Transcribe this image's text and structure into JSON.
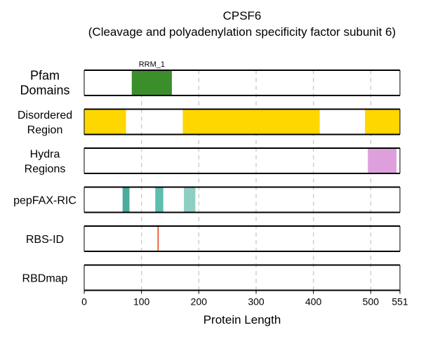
{
  "chart_data": {
    "type": "track",
    "title_line1": "CPSF6",
    "title_line2": "(Cleavage and polyadenylation specificity factor subunit 6)",
    "xlabel": "Protein Length",
    "xlim": [
      0,
      551
    ],
    "xticks": [
      0,
      100,
      200,
      300,
      400,
      500,
      551
    ],
    "gridlines": [
      100,
      200,
      300,
      400,
      500
    ],
    "tracks": [
      {
        "label_lines": [
          "Pfam",
          "Domains"
        ],
        "big": true,
        "segments": [
          {
            "start": 83,
            "end": 153,
            "color": "#3a8f2a",
            "label": "RRM_1"
          }
        ]
      },
      {
        "label_lines": [
          "Disordered",
          "Region"
        ],
        "segments": [
          {
            "start": 0,
            "end": 73,
            "color": "#ffd700"
          },
          {
            "start": 172,
            "end": 411,
            "color": "#ffd700"
          },
          {
            "start": 490,
            "end": 551,
            "color": "#ffd700"
          }
        ]
      },
      {
        "label_lines": [
          "Hydra",
          "Regions"
        ],
        "segments": [
          {
            "start": 495,
            "end": 545,
            "color": "#dda0dd"
          }
        ]
      },
      {
        "label_lines": [
          "pepFAX-RIC"
        ],
        "segments": [
          {
            "start": 67,
            "end": 79,
            "color": "#4aab9e"
          },
          {
            "start": 124,
            "end": 138,
            "color": "#5cbdaf"
          },
          {
            "start": 174,
            "end": 194,
            "color": "#8dd0c3"
          }
        ]
      },
      {
        "label_lines": [
          "RBS-ID"
        ],
        "segments": [
          {
            "start": 128,
            "end": 130,
            "color": "#e8471b"
          }
        ]
      },
      {
        "label_lines": [
          "RBDmap"
        ],
        "segments": []
      }
    ]
  }
}
